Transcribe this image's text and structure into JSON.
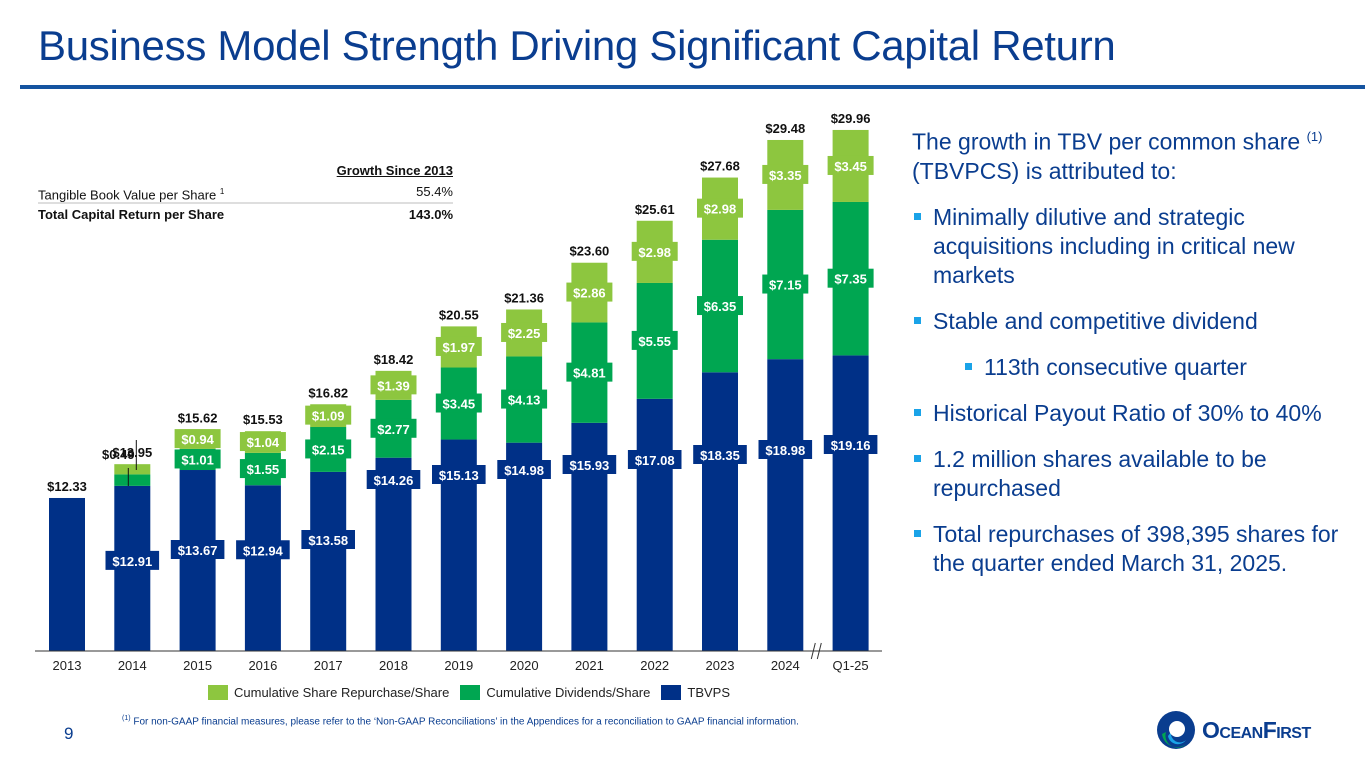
{
  "title": "Business Model Strength Driving Significant Capital Return",
  "growth_table": {
    "header": "Growth Since 2013",
    "rows": [
      {
        "label": "Tangible Book Value per Share",
        "sup": "1",
        "value": "55.4%"
      },
      {
        "label": "Total Capital Return per Share",
        "sup": "",
        "value": "143.0%"
      }
    ]
  },
  "chart_data": {
    "type": "bar",
    "stacked": true,
    "title": "",
    "xlabel": "",
    "ylabel": "",
    "ylim": [
      5,
      30
    ],
    "grid": false,
    "axis_break_before": "Q1-25",
    "categories": [
      "2013",
      "2014",
      "2015",
      "2016",
      "2017",
      "2018",
      "2019",
      "2020",
      "2021",
      "2022",
      "2023",
      "2024",
      "Q1-25"
    ],
    "series": [
      {
        "name": "TBVPS",
        "color": "#003087",
        "values": [
          12.33,
          12.91,
          13.67,
          12.94,
          13.58,
          14.26,
          15.13,
          14.98,
          15.93,
          17.08,
          18.35,
          18.98,
          19.16
        ]
      },
      {
        "name": "Cumulative Dividends/Share",
        "color": "#00a651",
        "values": [
          0,
          0.55,
          1.01,
          1.55,
          2.15,
          2.77,
          3.45,
          4.13,
          4.81,
          5.55,
          6.35,
          7.15,
          7.35
        ]
      },
      {
        "name": "Cumulative Share Repurchase/Share",
        "color": "#8dc63f",
        "values": [
          0,
          0.49,
          0.94,
          1.04,
          1.09,
          1.39,
          1.97,
          2.25,
          2.86,
          2.98,
          2.98,
          3.35,
          3.45
        ]
      }
    ],
    "segment_labels": {
      "TBVPS": [
        "",
        "$12.91",
        "$13.67",
        "$12.94",
        "$13.58",
        "$14.26",
        "$15.13",
        "$14.98",
        "$15.93",
        "$17.08",
        "$18.35",
        "$18.98",
        "$19.16"
      ],
      "Cumulative Dividends/Share": [
        "",
        "",
        "$1.01",
        "$1.55",
        "$2.15",
        "$2.77",
        "$3.45",
        "$4.13",
        "$4.81",
        "$5.55",
        "$6.35",
        "$7.15",
        "$7.35"
      ],
      "Cumulative Share Repurchase/Share": [
        "",
        "",
        "$0.94",
        "$1.04",
        "$1.09",
        "$1.39",
        "$1.97",
        "$2.25",
        "$2.86",
        "$2.98",
        "$2.98",
        "$3.35",
        "$3.45"
      ]
    },
    "callout_2014": "$0.49",
    "totals": [
      "$12.33",
      "$13.95",
      "$15.62",
      "$15.53",
      "$16.82",
      "$18.42",
      "$20.55",
      "$21.36",
      "$23.60",
      "$25.61",
      "$27.68",
      "$29.48",
      "$29.96"
    ],
    "legend": [
      "Cumulative Share Repurchase/Share",
      "Cumulative Dividends/Share",
      "TBVPS"
    ],
    "legend_position": "bottom"
  },
  "right_panel": {
    "intro_pre": "The growth in TBV per common share ",
    "intro_sup": "(1)",
    "intro_post": " (TBVPCS) is attributed to:",
    "bullets": [
      {
        "text": "Minimally dilutive and strategic acquisitions including in critical new markets",
        "level": 1
      },
      {
        "text": "Stable and competitive dividend",
        "level": 1
      },
      {
        "text": "113th consecutive quarter",
        "level": 2
      },
      {
        "text": "Historical Payout Ratio of 30% to 40%",
        "level": 1
      },
      {
        "text": "1.2 million shares available to be repurchased",
        "level": 1
      },
      {
        "text": "Total repurchases of 398,395 shares for the quarter ended March 31, 2025.",
        "level": 1
      }
    ]
  },
  "footnote": {
    "sup": "(1)",
    "text": " For non-GAAP financial measures, please refer to the ‘Non-GAAP Reconciliations’ in the Appendices for a reconciliation to GAAP financial information."
  },
  "page_number": "9",
  "logo": {
    "text": "OceanFirst",
    "icon": "ocean-wave-logo-icon"
  }
}
